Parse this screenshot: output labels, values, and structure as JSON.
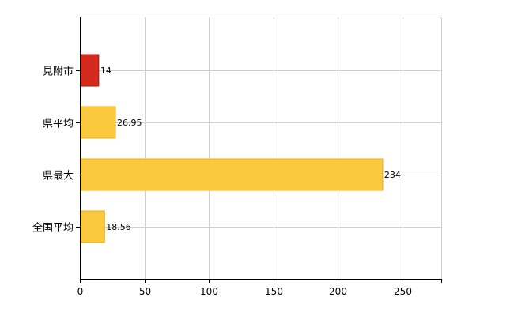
{
  "chart_data": {
    "type": "bar",
    "orientation": "horizontal",
    "categories": [
      "見附市",
      "県平均",
      "県最大",
      "全国平均"
    ],
    "values": [
      14,
      26.95,
      234,
      18.56
    ],
    "data_labels": [
      "14",
      "26.95",
      "234",
      "18.56"
    ],
    "bar_colors": [
      "#d42a1d",
      "#fbc93d",
      "#fbc93d",
      "#fbc93d"
    ],
    "bar_edge_colors": [
      "#a81c12",
      "#e0ad24",
      "#e0ad24",
      "#e0ad24"
    ],
    "xlim": [
      0,
      280
    ],
    "xticks": [
      0,
      50,
      100,
      150,
      200,
      250
    ],
    "grid": true,
    "legend": "none"
  }
}
